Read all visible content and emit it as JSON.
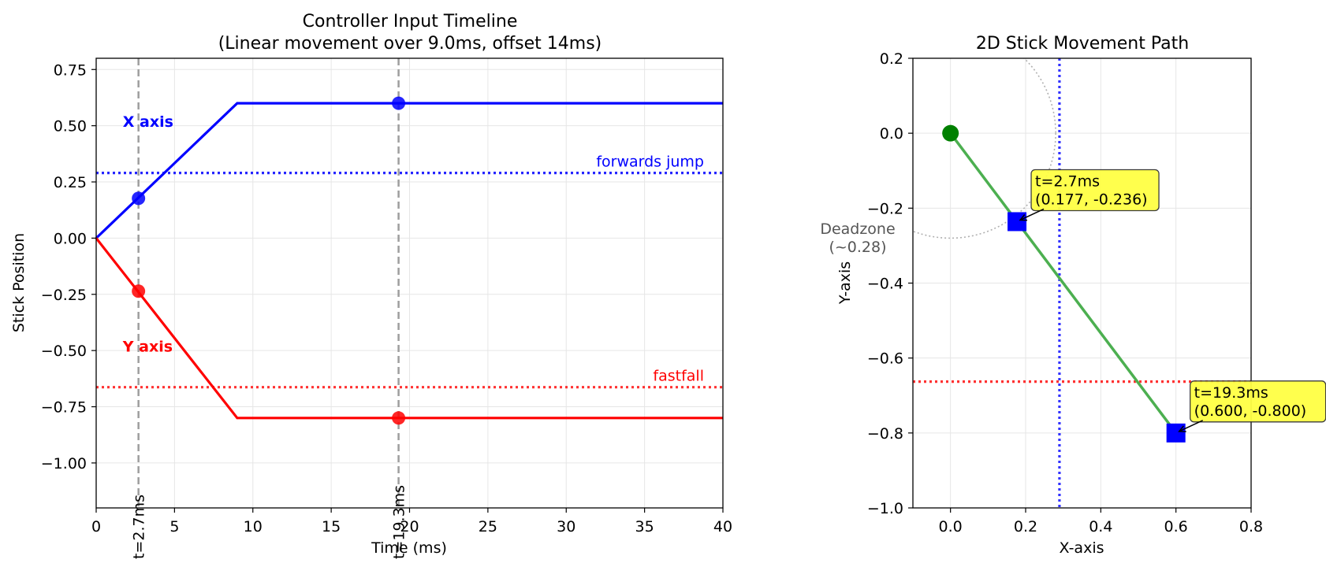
{
  "chart_data": [
    {
      "type": "line",
      "title": "Controller Input Timeline",
      "subtitle": "(Linear movement over 9.0ms, offset 14ms)",
      "xlabel": "Time (ms)",
      "ylabel": "Stick Position",
      "xlim": [
        0,
        40
      ],
      "ylim": [
        -1.2,
        0.8
      ],
      "xticks": [
        0,
        5,
        10,
        15,
        20,
        25,
        30,
        35,
        40
      ],
      "yticks": [
        0.75,
        0.5,
        0.25,
        0.0,
        -0.25,
        -0.5,
        -0.75,
        -1.0
      ],
      "xtick_labels": [
        "0",
        "5",
        "10",
        "15",
        "20",
        "25",
        "30",
        "35",
        "40"
      ],
      "ytick_labels": [
        "0.75",
        "0.50",
        "0.25",
        "0.00",
        "−0.25",
        "−0.50",
        "−0.75",
        "−1.00"
      ],
      "grid": true,
      "series": [
        {
          "name": "X axis",
          "color": "#0000ff",
          "x": [
            0,
            9,
            40
          ],
          "y": [
            0,
            0.6,
            0.6
          ],
          "markers": [
            {
              "x": 2.7,
              "y": 0.177
            },
            {
              "x": 19.3,
              "y": 0.6
            }
          ],
          "label_at": {
            "x": 2,
            "y": 0.52
          }
        },
        {
          "name": "Y axis",
          "color": "#ff0000",
          "x": [
            0,
            9,
            40
          ],
          "y": [
            0,
            -0.8,
            -0.8
          ],
          "markers": [
            {
              "x": 2.7,
              "y": -0.236
            },
            {
              "x": 19.3,
              "y": -0.8
            }
          ],
          "label_at": {
            "x": 2,
            "y": -0.48
          }
        }
      ],
      "thresholds": [
        {
          "label": "forwards jump",
          "y": 0.29,
          "color": "#0000ff"
        },
        {
          "label": "fastfall",
          "y": -0.663,
          "color": "#ff0000"
        }
      ],
      "vlines": [
        {
          "label": "t=2.7ms",
          "x": 2.7
        },
        {
          "label": "t=19.3ms",
          "x": 19.3
        }
      ]
    },
    {
      "type": "scatter",
      "title": "2D Stick Movement Path",
      "xlabel": "X-axis",
      "ylabel": "Y-axis",
      "xlim": [
        -0.1,
        0.8
      ],
      "ylim": [
        -1.0,
        0.2
      ],
      "xticks": [
        0.0,
        0.2,
        0.4,
        0.6,
        0.8
      ],
      "yticks": [
        0.2,
        0.0,
        -0.2,
        -0.4,
        -0.6,
        -0.8,
        -1.0
      ],
      "xtick_labels": [
        "0.0",
        "0.2",
        "0.4",
        "0.6",
        "0.8"
      ],
      "ytick_labels": [
        "0.2",
        "0.0",
        "−0.2",
        "−0.4",
        "−0.6",
        "−0.8",
        "−1.0"
      ],
      "grid": true,
      "path": {
        "x": [
          0,
          0.6
        ],
        "y": [
          0,
          -0.8
        ],
        "color": "#4caf50"
      },
      "start_point": {
        "x": 0,
        "y": 0,
        "color": "#008000"
      },
      "points": [
        {
          "x": 0.177,
          "y": -0.236,
          "annotation_time": "t=2.7ms",
          "annotation_coords": "(0.177, -0.236)"
        },
        {
          "x": 0.6,
          "y": -0.8,
          "annotation_time": "t=19.3ms",
          "annotation_coords": "(0.600, -0.800)"
        }
      ],
      "point_color": "#0000ff",
      "deadzone": {
        "label_line1": "Deadzone",
        "label_line2": "(~0.28)",
        "radius": 0.28
      },
      "threshold_x": 0.29,
      "threshold_y": -0.663,
      "annotation_fill": "#ffff44"
    }
  ]
}
